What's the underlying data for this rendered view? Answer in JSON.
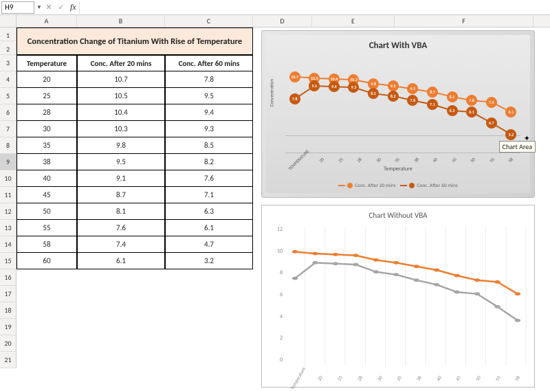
{
  "namebox": "H9",
  "table": {
    "title": "Concentration Change of Titanium With Rise of Temperature",
    "headers": [
      "Temperature",
      "Conc. After 20 mins",
      "Conc. After 60 mins"
    ],
    "rows": [
      [
        "20",
        "10.7",
        "7.8"
      ],
      [
        "25",
        "10.5",
        "9.5"
      ],
      [
        "28",
        "10.4",
        "9.4"
      ],
      [
        "30",
        "10.3",
        "9.3"
      ],
      [
        "35",
        "9.8",
        "8.5"
      ],
      [
        "38",
        "9.5",
        "8.2"
      ],
      [
        "40",
        "9.1",
        "7.6"
      ],
      [
        "45",
        "8.7",
        "7.1"
      ],
      [
        "50",
        "8.1",
        "6.3"
      ],
      [
        "55",
        "7.6",
        "6.1"
      ],
      [
        "58",
        "7.4",
        "4.7"
      ],
      [
        "60",
        "6.1",
        "3.2"
      ]
    ]
  },
  "chart1": {
    "title": "Chart With VBA",
    "ylabel": "Concentration",
    "xlabel": "Temperature",
    "xticks": [
      "TEMPERATURE",
      "20",
      "25",
      "28",
      "30",
      "35",
      "38",
      "40",
      "45",
      "50",
      "55",
      "58"
    ],
    "series1": {
      "name": "Conc. After 20 mins",
      "color": "#ed7d31",
      "values": [
        10.7,
        10.5,
        10.4,
        10.3,
        9.8,
        9.5,
        9.1,
        8.7,
        8.1,
        7.6,
        7.4,
        6.1
      ]
    },
    "series2": {
      "name": "Conc. After 60 mins",
      "color": "#c55a11",
      "values": [
        7.8,
        9.5,
        9.4,
        9.3,
        8.5,
        8.2,
        7.6,
        7.1,
        6.3,
        6.1,
        4.7,
        3.2
      ]
    },
    "tooltip": "Chart Area"
  },
  "chart2": {
    "title": "Chart Without VBA",
    "yticks": [
      "12",
      "10",
      "8",
      "6",
      "4",
      "2",
      "0"
    ],
    "xticks": [
      "Temperature",
      "20",
      "25",
      "28",
      "30",
      "35",
      "38",
      "40",
      "45",
      "50",
      "55",
      "58"
    ],
    "series1": {
      "color": "#ed7d31",
      "values": [
        10.7,
        10.5,
        10.4,
        10.3,
        9.8,
        9.5,
        9.1,
        8.7,
        8.1,
        7.6,
        7.4,
        6.1
      ]
    },
    "series2": {
      "color": "#a6a6a6",
      "values": [
        7.8,
        9.5,
        9.4,
        9.3,
        8.5,
        8.2,
        7.6,
        7.1,
        6.3,
        6.1,
        4.7,
        3.2
      ]
    }
  },
  "rows_visible": 21,
  "cols": [
    "A",
    "B",
    "C",
    "D",
    "E",
    "F"
  ]
}
